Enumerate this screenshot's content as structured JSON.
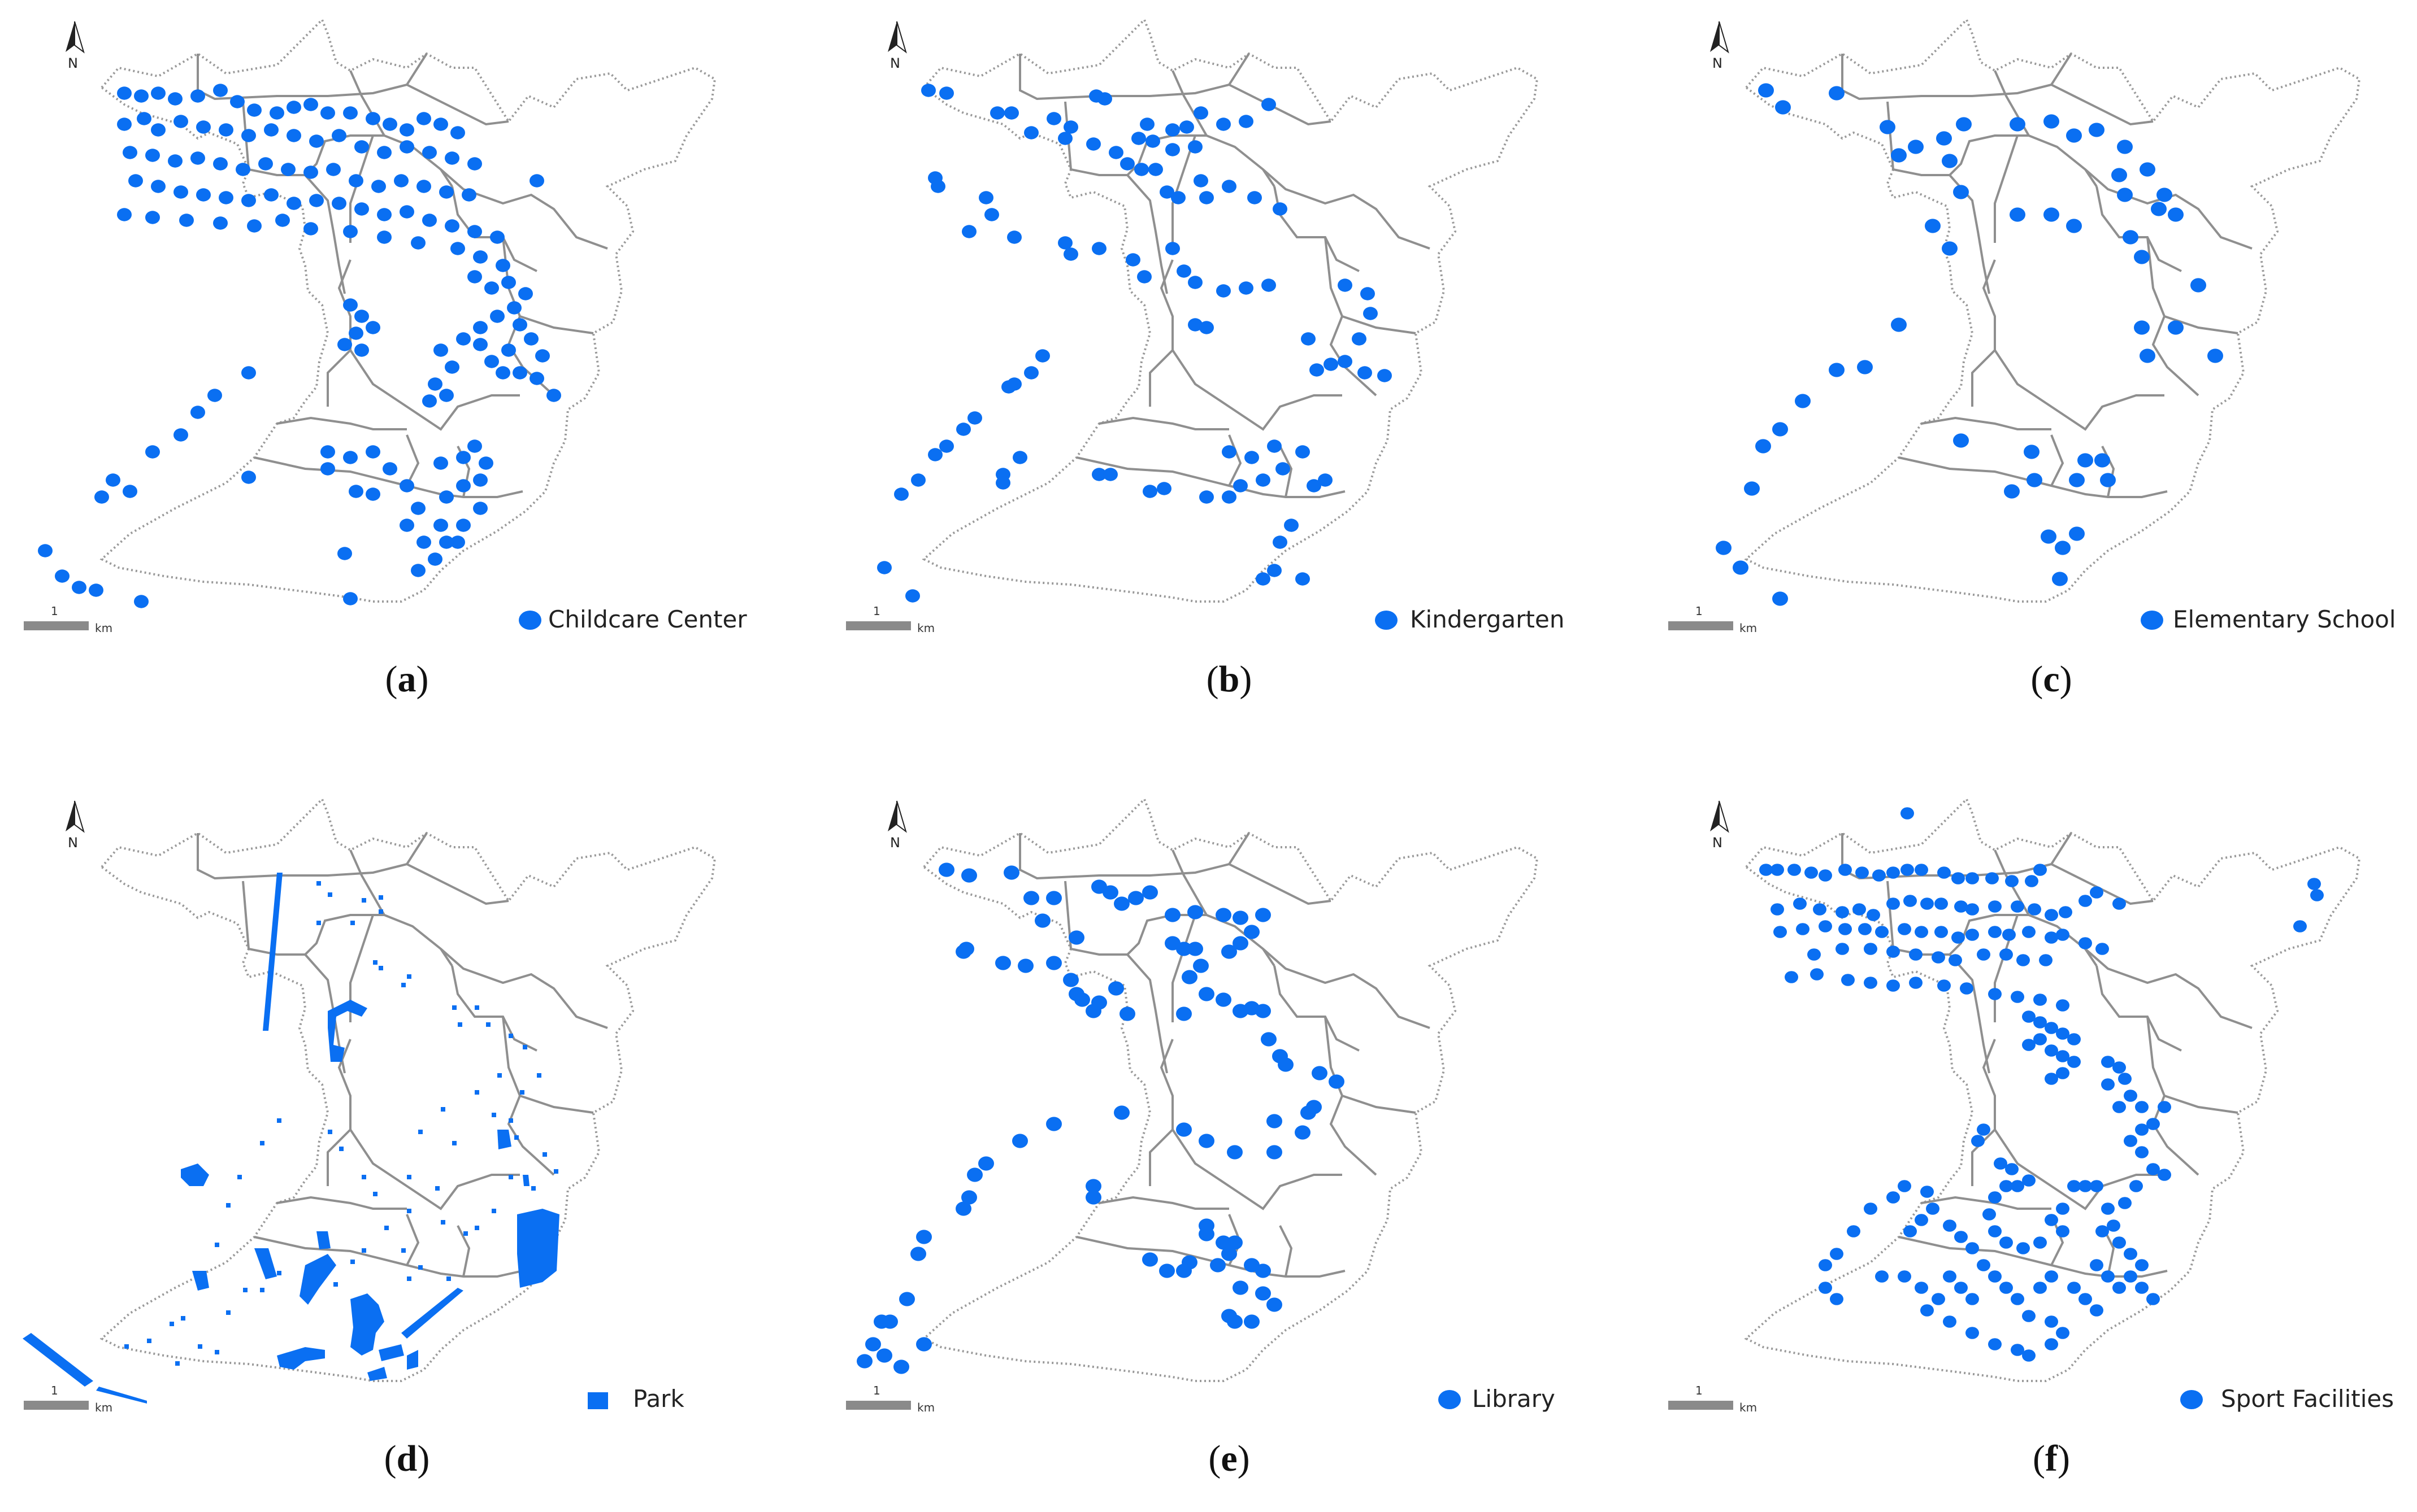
{
  "accent_color": "#0a6ff2",
  "boundary_color": "#9a9a9a",
  "north_label": "N",
  "scale": {
    "value": "1",
    "unit": "km"
  },
  "panels": [
    {
      "id": "a",
      "legend": "Childcare Center",
      "symbol": "circle"
    },
    {
      "id": "b",
      "legend": "Kindergarten",
      "symbol": "circle"
    },
    {
      "id": "c",
      "legend": "Elementary School",
      "symbol": "circle"
    },
    {
      "id": "d",
      "legend": "Park",
      "symbol": "square"
    },
    {
      "id": "e",
      "legend": "Library",
      "symbol": "circle"
    },
    {
      "id": "f",
      "legend": "Sport Facilities",
      "symbol": "circle"
    }
  ],
  "captions": [
    "a",
    "b",
    "c",
    "d",
    "e",
    "f"
  ]
}
